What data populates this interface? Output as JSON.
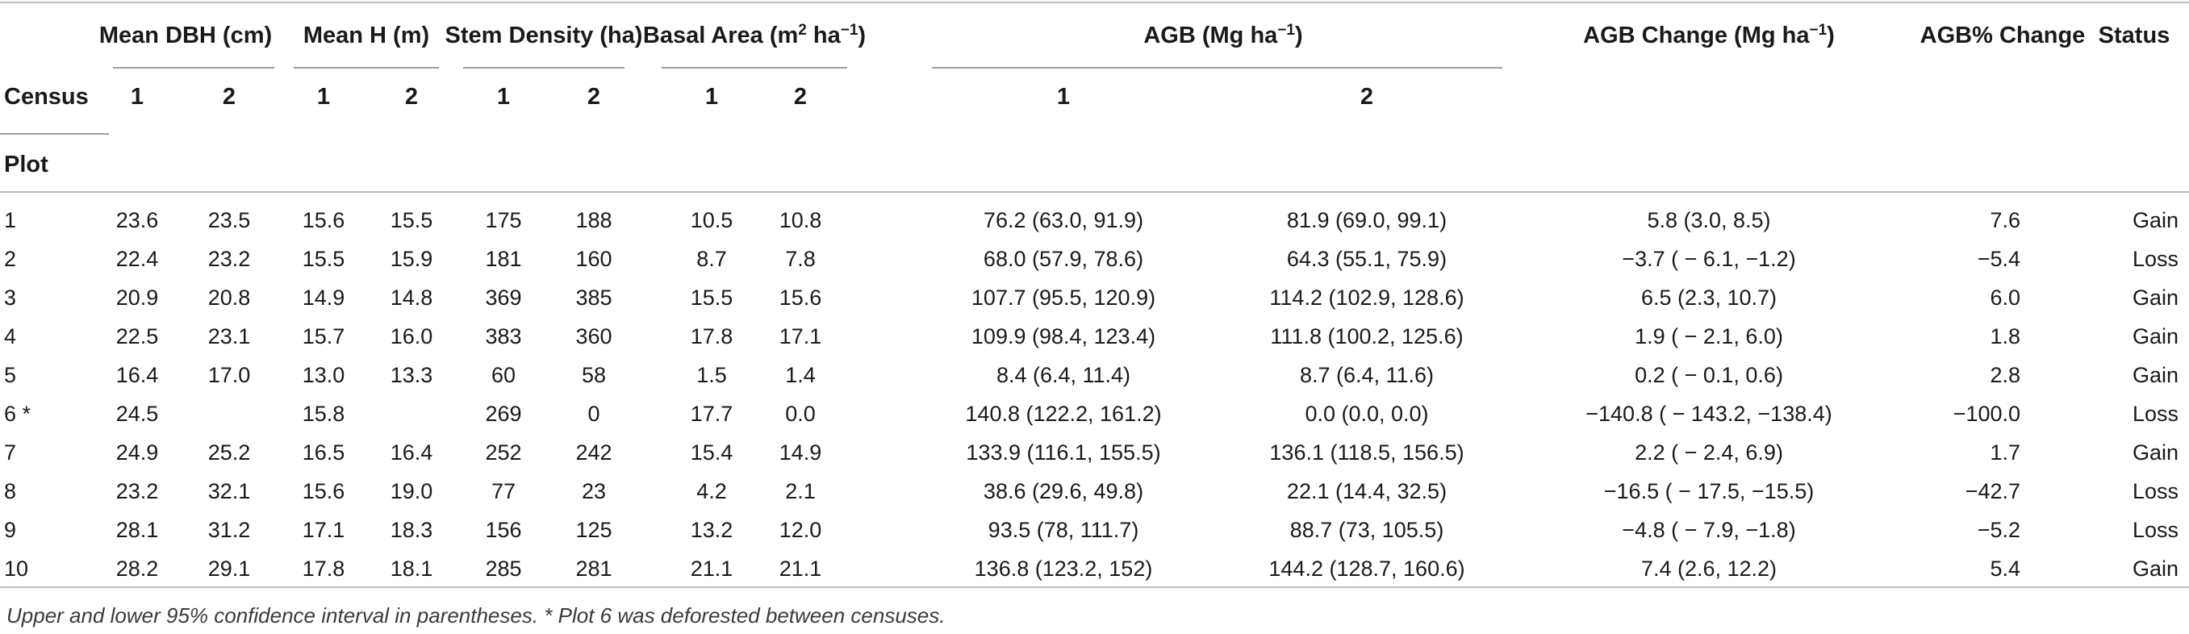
{
  "header": {
    "groups": [
      {
        "id": "dbh",
        "pre": "Mean DBH (cm)",
        "sup": "",
        "post": ""
      },
      {
        "id": "h",
        "pre": "Mean H (m)",
        "sup": "",
        "post": ""
      },
      {
        "id": "sd",
        "pre": "Stem Density (ha)",
        "sup": "",
        "post": ""
      },
      {
        "id": "ba",
        "pre": "Basal Area (m",
        "sup": "2",
        "post": " ha",
        "sup2": "−1",
        "post2": ")"
      },
      {
        "id": "agb",
        "pre": "AGB (Mg ha",
        "sup": "−1",
        "post": ")"
      },
      {
        "id": "agbc",
        "pre": "AGB Change (Mg ha",
        "sup": "−1",
        "post": ")"
      },
      {
        "id": "agbp",
        "pre": "AGB% Change",
        "sup": "",
        "post": ""
      },
      {
        "id": "status",
        "pre": "Status",
        "sup": "",
        "post": ""
      }
    ],
    "census_label": "Census",
    "plot_label": "Plot",
    "census_numbers": [
      "1",
      "2",
      "1",
      "2",
      "1",
      "2",
      "1",
      "2",
      "1",
      "2"
    ]
  },
  "rows": [
    {
      "plot": "1",
      "dbh1": "23.6",
      "dbh2": "23.5",
      "h1": "15.6",
      "h2": "15.5",
      "sd1": "175",
      "sd2": "188",
      "ba1": "10.5",
      "ba2": "10.8",
      "agb1": "76.2 (63.0, 91.9)",
      "agb2": "81.9 (69.0, 99.1)",
      "change": "5.8 (3.0, 8.5)",
      "pct": "7.6",
      "status": "Gain"
    },
    {
      "plot": "2",
      "dbh1": "22.4",
      "dbh2": "23.2",
      "h1": "15.5",
      "h2": "15.9",
      "sd1": "181",
      "sd2": "160",
      "ba1": "8.7",
      "ba2": "7.8",
      "agb1": "68.0 (57.9, 78.6)",
      "agb2": "64.3 (55.1, 75.9)",
      "change": "−3.7 ( − 6.1, −1.2)",
      "pct": "−5.4",
      "status": "Loss"
    },
    {
      "plot": "3",
      "dbh1": "20.9",
      "dbh2": "20.8",
      "h1": "14.9",
      "h2": "14.8",
      "sd1": "369",
      "sd2": "385",
      "ba1": "15.5",
      "ba2": "15.6",
      "agb1": "107.7 (95.5, 120.9)",
      "agb2": "114.2 (102.9, 128.6)",
      "change": "6.5 (2.3, 10.7)",
      "pct": "6.0",
      "status": "Gain"
    },
    {
      "plot": "4",
      "dbh1": "22.5",
      "dbh2": "23.1",
      "h1": "15.7",
      "h2": "16.0",
      "sd1": "383",
      "sd2": "360",
      "ba1": "17.8",
      "ba2": "17.1",
      "agb1": "109.9 (98.4, 123.4)",
      "agb2": "111.8 (100.2, 125.6)",
      "change": "1.9 ( − 2.1, 6.0)",
      "pct": "1.8",
      "status": "Gain"
    },
    {
      "plot": "5",
      "dbh1": "16.4",
      "dbh2": "17.0",
      "h1": "13.0",
      "h2": "13.3",
      "sd1": "60",
      "sd2": "58",
      "ba1": "1.5",
      "ba2": "1.4",
      "agb1": "8.4 (6.4, 11.4)",
      "agb2": "8.7 (6.4, 11.6)",
      "change": "0.2 ( − 0.1, 0.6)",
      "pct": "2.8",
      "status": "Gain"
    },
    {
      "plot": "6 *",
      "dbh1": "24.5",
      "dbh2": "",
      "h1": "15.8",
      "h2": "",
      "sd1": "269",
      "sd2": "0",
      "ba1": "17.7",
      "ba2": "0.0",
      "agb1": "140.8 (122.2, 161.2)",
      "agb2": "0.0 (0.0, 0.0)",
      "change": "−140.8 ( − 143.2, −138.4)",
      "pct": "−100.0",
      "status": "Loss"
    },
    {
      "plot": "7",
      "dbh1": "24.9",
      "dbh2": "25.2",
      "h1": "16.5",
      "h2": "16.4",
      "sd1": "252",
      "sd2": "242",
      "ba1": "15.4",
      "ba2": "14.9",
      "agb1": "133.9 (116.1, 155.5)",
      "agb2": "136.1 (118.5, 156.5)",
      "change": "2.2 ( − 2.4, 6.9)",
      "pct": "1.7",
      "status": "Gain"
    },
    {
      "plot": "8",
      "dbh1": "23.2",
      "dbh2": "32.1",
      "h1": "15.6",
      "h2": "19.0",
      "sd1": "77",
      "sd2": "23",
      "ba1": "4.2",
      "ba2": "2.1",
      "agb1": "38.6 (29.6, 49.8)",
      "agb2": "22.1 (14.4, 32.5)",
      "change": "−16.5 ( − 17.5, −15.5)",
      "pct": "−42.7",
      "status": "Loss"
    },
    {
      "plot": "9",
      "dbh1": "28.1",
      "dbh2": "31.2",
      "h1": "17.1",
      "h2": "18.3",
      "sd1": "156",
      "sd2": "125",
      "ba1": "13.2",
      "ba2": "12.0",
      "agb1": "93.5 (78, 111.7)",
      "agb2": "88.7 (73, 105.5)",
      "change": "−4.8 ( − 7.9, −1.8)",
      "pct": "−5.2",
      "status": "Loss"
    },
    {
      "plot": "10",
      "dbh1": "28.2",
      "dbh2": "29.1",
      "h1": "17.8",
      "h2": "18.1",
      "sd1": "285",
      "sd2": "281",
      "ba1": "21.1",
      "ba2": "21.1",
      "agb1": "136.8 (123.2, 152)",
      "agb2": "144.2 (128.7, 160.6)",
      "change": "7.4 (2.6, 12.2)",
      "pct": "5.4",
      "status": "Gain"
    }
  ],
  "footnote": "Upper and lower 95% confidence interval in parentheses. * Plot 6 was deforested between censuses."
}
